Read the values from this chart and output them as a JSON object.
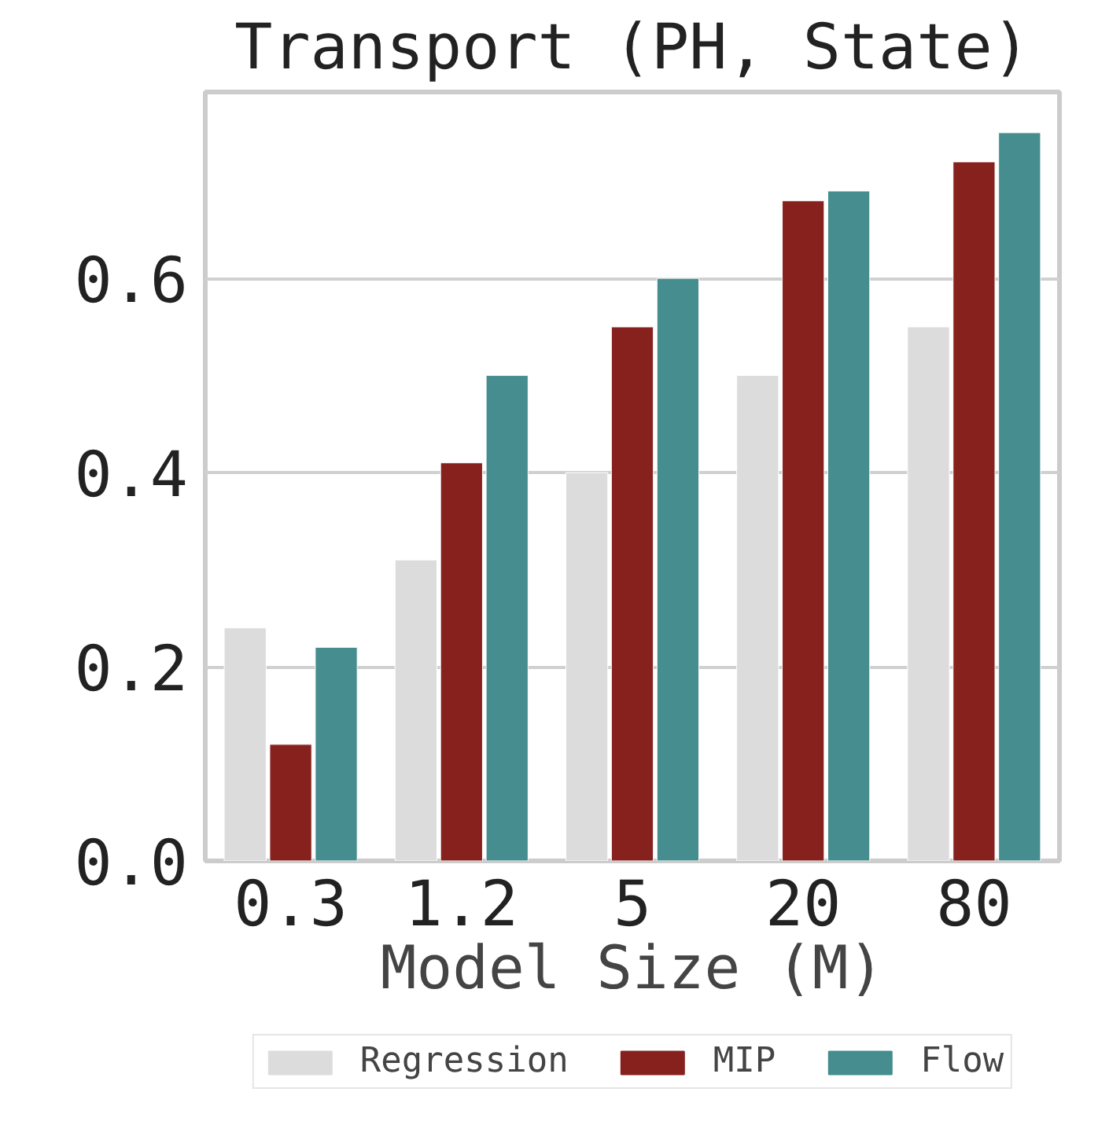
{
  "chart_data": {
    "type": "bar",
    "title": "Transport (PH, State)",
    "xlabel": "Model Size (M)",
    "categories": [
      "0.3",
      "1.2",
      "5",
      "20",
      "80"
    ],
    "series": [
      {
        "name": "Regression",
        "color": "#dcdcdc",
        "values": [
          0.24,
          0.31,
          0.4,
          0.5,
          0.55
        ]
      },
      {
        "name": "MIP",
        "color": "#86211e",
        "values": [
          0.12,
          0.41,
          0.55,
          0.68,
          0.72
        ]
      },
      {
        "name": "Flow",
        "color": "#458d8e",
        "values": [
          0.22,
          0.5,
          0.6,
          0.69,
          0.75
        ]
      }
    ],
    "ylim": [
      0,
      0.792
    ],
    "yticks": [
      {
        "value": 0,
        "label": "0.0"
      },
      {
        "value": 0.2,
        "label": "0.2"
      },
      {
        "value": 0.4,
        "label": "0.4"
      },
      {
        "value": 0.6,
        "label": "0.6"
      }
    ],
    "grid": "y",
    "legend": "bottom"
  }
}
